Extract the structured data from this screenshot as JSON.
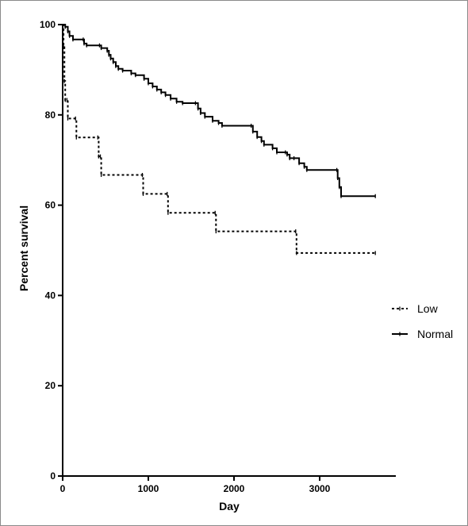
{
  "chart_data": {
    "type": "line",
    "subtype": "kaplan-meier step",
    "title": "",
    "xlabel": "Day",
    "ylabel": "Percent survival",
    "xlim": [
      0,
      3700
    ],
    "ylim": [
      0,
      100
    ],
    "xticks": [
      0,
      1000,
      2000,
      3000
    ],
    "yticks": [
      0,
      20,
      40,
      60,
      80,
      100
    ],
    "grid": false,
    "legend_position": "right",
    "series": [
      {
        "name": "Low",
        "style": "dotted",
        "color": "#000000",
        "points": [
          [
            0,
            100
          ],
          [
            10,
            95
          ],
          [
            20,
            87.5
          ],
          [
            30,
            83.3
          ],
          [
            50,
            83.3
          ],
          [
            60,
            79.2
          ],
          [
            150,
            79.2
          ],
          [
            160,
            75
          ],
          [
            410,
            75
          ],
          [
            420,
            70.8
          ],
          [
            440,
            70.8
          ],
          [
            450,
            66.7
          ],
          [
            930,
            66.7
          ],
          [
            940,
            62.5
          ],
          [
            1220,
            62.5
          ],
          [
            1230,
            58.3
          ],
          [
            1780,
            58.3
          ],
          [
            1790,
            54.2
          ],
          [
            2720,
            54.2
          ],
          [
            2730,
            49.4
          ],
          [
            3650,
            49.4
          ]
        ]
      },
      {
        "name": "Normal",
        "style": "solid",
        "color": "#000000",
        "points": [
          [
            0,
            100
          ],
          [
            30,
            99.5
          ],
          [
            60,
            98.5
          ],
          [
            80,
            97.5
          ],
          [
            120,
            96.7
          ],
          [
            240,
            96.7
          ],
          [
            250,
            95.8
          ],
          [
            280,
            95.4
          ],
          [
            430,
            95.4
          ],
          [
            450,
            94.8
          ],
          [
            520,
            94.2
          ],
          [
            540,
            93.3
          ],
          [
            560,
            92.5
          ],
          [
            590,
            91.7
          ],
          [
            620,
            90.8
          ],
          [
            650,
            90.2
          ],
          [
            700,
            89.8
          ],
          [
            800,
            89.2
          ],
          [
            850,
            88.8
          ],
          [
            950,
            88.0
          ],
          [
            1000,
            87.0
          ],
          [
            1050,
            86.3
          ],
          [
            1100,
            85.6
          ],
          [
            1150,
            85.0
          ],
          [
            1200,
            84.4
          ],
          [
            1260,
            83.6
          ],
          [
            1330,
            82.9
          ],
          [
            1400,
            82.6
          ],
          [
            1550,
            82.6
          ],
          [
            1580,
            81.4
          ],
          [
            1610,
            80.4
          ],
          [
            1660,
            79.6
          ],
          [
            1750,
            78.7
          ],
          [
            1820,
            78.2
          ],
          [
            1860,
            77.6
          ],
          [
            2200,
            77.6
          ],
          [
            2220,
            76.3
          ],
          [
            2270,
            75.1
          ],
          [
            2320,
            74.2
          ],
          [
            2350,
            73.4
          ],
          [
            2450,
            72.6
          ],
          [
            2500,
            71.7
          ],
          [
            2600,
            71.7
          ],
          [
            2620,
            71.2
          ],
          [
            2650,
            70.4
          ],
          [
            2700,
            70.4
          ],
          [
            2760,
            69.3
          ],
          [
            2820,
            68.5
          ],
          [
            2850,
            67.8
          ],
          [
            3200,
            67.8
          ],
          [
            3210,
            66.0
          ],
          [
            3230,
            64.0
          ],
          [
            3250,
            62.0
          ],
          [
            3650,
            62.0
          ]
        ]
      }
    ]
  }
}
